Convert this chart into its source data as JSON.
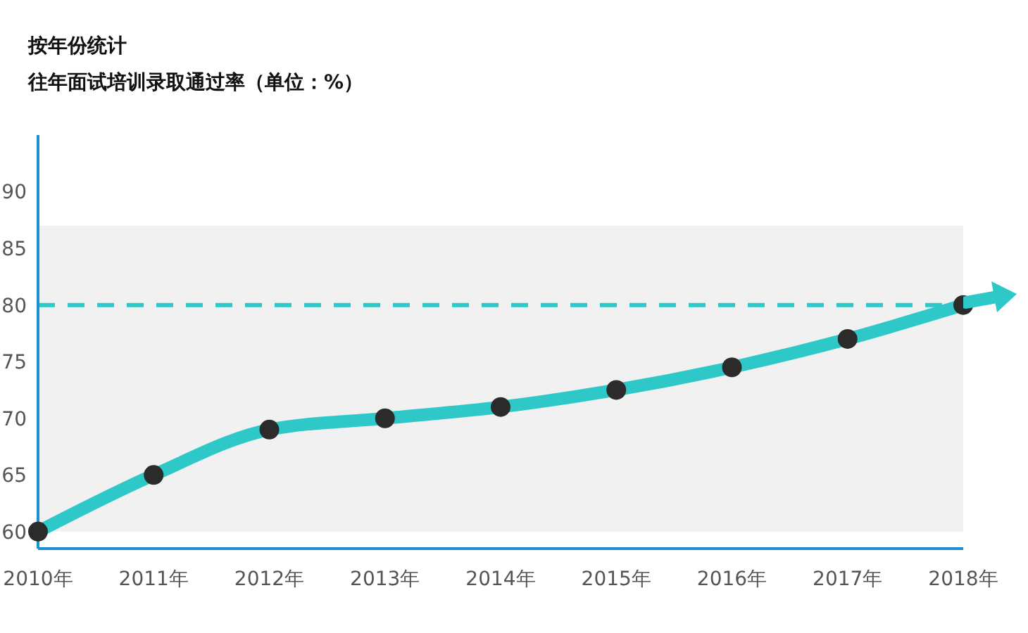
{
  "chart_data": {
    "type": "line",
    "title": "按年份统计",
    "subtitle": "往年面试培训录取通过率（单位：%）",
    "categories": [
      "2010年",
      "2011年",
      "2012年",
      "2013年",
      "2014年",
      "2015年",
      "2016年",
      "2017年",
      "2018年"
    ],
    "series": [
      {
        "color": "#2ec8c8",
        "values": [
          60,
          65,
          69,
          70,
          71,
          72.5,
          74.5,
          77,
          80
        ]
      }
    ],
    "ylim": [
      58.5,
      95
    ],
    "yticks": [
      60,
      65,
      70,
      75,
      80,
      85,
      90
    ],
    "ref_lines": [
      {
        "axis": "y",
        "value": 80,
        "color": "#2ec8c8",
        "line_style": "dashed"
      }
    ],
    "bands": [
      {
        "axis": "y",
        "from": 60,
        "to": 87,
        "color": "#f1f1f1"
      }
    ],
    "grid": false,
    "legend": false,
    "marker": "circle",
    "line_style": "solid"
  }
}
